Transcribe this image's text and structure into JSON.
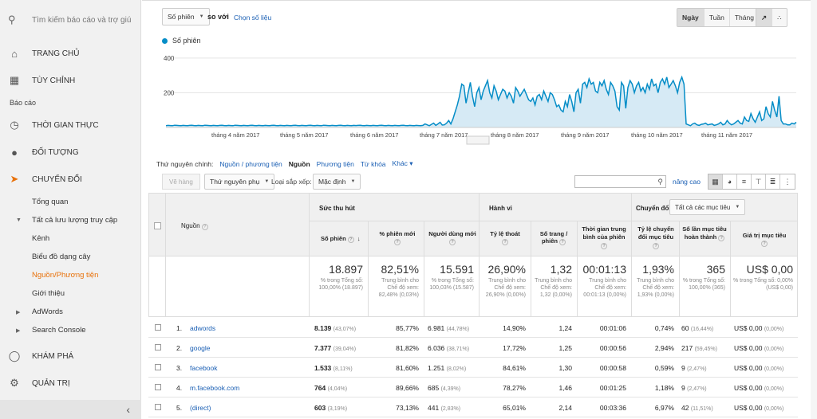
{
  "sidebar": {
    "search_placeholder": "Tìm kiếm báo cáo và trợ giú",
    "home": "TRANG CHỦ",
    "custom": "TÙY CHỈNH",
    "reports_label": "Báo cáo",
    "realtime": "THỜI GIAN THỰC",
    "audience": "ĐỐI TƯỢNG",
    "acquisition": "CHUYỂN ĐỔI",
    "sub_items": [
      "Tổng quan",
      "Tất cả lưu lượng truy cập",
      "Kênh",
      "Biểu đồ dạng cây",
      "Nguồn/Phương tiện",
      "Giới thiệu",
      "AdWords",
      "Search Console"
    ],
    "explore": "KHÁM PHÁ",
    "admin": "QUẢN TRỊ",
    "collapse_icon": "‹"
  },
  "controls": {
    "metric_select": "Số phiên",
    "compare_text": "so với",
    "choose_metric": "Chọn số liệu",
    "period_buttons": [
      "Ngày",
      "Tuần",
      "Tháng"
    ],
    "active_period": "Ngày"
  },
  "chart_data": {
    "type": "area",
    "series": [
      {
        "name": "Số phiên"
      }
    ],
    "ylim": [
      0,
      450
    ],
    "yticks": [
      200,
      400
    ],
    "xlabels": [
      "tháng 4 năm 2017",
      "tháng 5 năm 2017",
      "tháng 6 năm 2017",
      "tháng 7 năm 2017",
      "tháng 8 năm 2017",
      "tháng 9 năm 2017",
      "tháng 10 năm 2017",
      "tháng 11 năm 2017"
    ],
    "values": [
      10,
      12,
      11,
      10,
      13,
      12,
      11,
      10,
      12,
      11,
      10,
      12,
      13,
      11,
      10,
      12,
      11,
      10,
      13,
      12,
      11,
      10,
      12,
      11,
      10,
      12,
      13,
      11,
      10,
      12,
      11,
      10,
      13,
      12,
      11,
      10,
      12,
      11,
      10,
      12,
      13,
      11,
      10,
      12,
      11,
      10,
      12,
      11,
      10,
      12,
      13,
      11,
      10,
      12,
      11,
      10,
      12,
      11,
      10,
      12,
      13,
      11,
      10,
      12,
      11,
      10,
      12,
      13,
      11,
      10,
      12,
      11,
      10,
      13,
      12,
      11,
      10,
      12,
      11,
      10,
      12,
      13,
      11,
      10,
      12,
      11,
      10,
      12,
      11,
      12,
      13,
      11,
      10,
      12,
      11,
      10,
      12,
      11,
      10,
      12,
      13,
      11,
      10,
      12,
      11,
      10,
      12,
      11,
      10,
      12,
      13,
      11,
      10,
      12,
      11,
      10,
      12,
      11,
      10,
      12,
      20,
      15,
      10,
      18,
      25,
      12,
      20,
      30,
      14,
      15,
      25,
      40,
      20,
      50,
      90,
      130,
      180,
      250,
      240,
      140,
      200,
      260,
      180,
      120,
      200,
      230,
      160,
      210,
      240,
      270,
      200,
      170,
      240,
      210,
      160,
      190,
      220,
      210,
      170,
      200,
      180,
      140,
      230,
      210,
      180,
      200,
      220,
      190,
      160,
      150,
      170,
      130,
      180,
      190,
      160,
      210,
      180,
      150,
      200,
      190,
      160,
      120,
      130,
      100,
      90,
      150,
      120,
      190,
      150,
      90,
      200,
      220,
      140,
      250,
      260,
      230,
      280,
      250,
      260,
      210,
      200,
      260,
      240,
      270,
      220,
      190,
      260,
      240,
      210,
      120,
      100,
      260,
      240,
      110,
      230,
      270,
      250,
      200,
      240,
      260,
      210,
      230,
      200,
      250,
      220,
      280,
      240,
      250,
      200,
      260,
      280,
      250,
      290,
      230,
      250,
      270,
      240,
      200,
      260,
      290,
      250,
      20,
      15,
      10,
      20,
      25,
      15,
      12,
      18,
      20,
      25,
      15,
      18,
      20,
      12,
      15,
      20,
      30,
      15,
      20,
      40,
      25,
      15,
      20,
      30,
      40,
      25,
      20,
      60,
      40,
      35,
      80,
      50,
      30,
      60,
      90,
      40,
      50,
      120,
      80,
      60,
      150,
      100,
      60,
      180,
      40,
      20,
      20,
      15,
      15,
      25,
      20,
      30
    ]
  },
  "dimensions": {
    "label": "Thứ nguyên chính:",
    "options": [
      "Nguồn / phương tiện",
      "Nguồn",
      "Phương tiện",
      "Từ khóa",
      "Khác"
    ],
    "current": "Nguồn"
  },
  "toolbar": {
    "plot_rows": "Vẽ hàng",
    "secondary_dim": "Thứ nguyên phụ",
    "sort_type_label": "Loại sắp xếp:",
    "sort_value": "Mặc định",
    "advanced": "nâng cao"
  },
  "table": {
    "source_header": "Nguồn",
    "groups": [
      "Sức thu hút",
      "Hành vi",
      "Chuyển đổi"
    ],
    "goal_select": "Tất cả các mục tiêu",
    "columns": [
      "Số phiên",
      "% phiên mới",
      "Người dùng mới",
      "Tỷ lệ thoát",
      "Số trang / phiên",
      "Thời gian trung bình của phiên",
      "Tỷ lệ chuyển đổi mục tiêu",
      "Số lần mục tiêu hoàn thành",
      "Giá trị mục tiêu"
    ],
    "totals": [
      {
        "big": "18.897",
        "small": "% trong Tổng số: 100,00% (18.897)"
      },
      {
        "big": "82,51%",
        "small": "Trung bình cho Chế độ xem: 82,48% (0,03%)"
      },
      {
        "big": "15.591",
        "small": "% trong Tổng số: 100,03% (15.587)"
      },
      {
        "big": "26,90%",
        "small": "Trung bình cho Chế độ xem: 26,90% (0,00%)"
      },
      {
        "big": "1,32",
        "small": "Trung bình cho Chế độ xem: 1,32 (0,00%)"
      },
      {
        "big": "00:01:13",
        "small": "Trung bình cho Chế độ xem: 00:01:13 (0,00%)"
      },
      {
        "big": "1,93%",
        "small": "Trung bình cho Chế độ xem: 1,93% (0,00%)"
      },
      {
        "big": "365",
        "small": "% trong Tổng số: 100,00% (365)"
      },
      {
        "big": "US$ 0,00",
        "small": "% trong Tổng số: 0,00% (US$ 0,00)"
      }
    ],
    "rows": [
      {
        "idx": "1.",
        "source": "adwords",
        "sessions": "8.139",
        "sessions_pct": "(43,07%)",
        "new_pct": "85,77%",
        "new_users": "6.981",
        "new_users_pct": "(44,78%)",
        "bounce": "14,90%",
        "pages": "1,24",
        "duration": "00:01:06",
        "conv": "0,74%",
        "goals": "60",
        "goals_pct": "(16,44%)",
        "value": "US$ 0,00",
        "value_pct": "(0,00%)"
      },
      {
        "idx": "2.",
        "source": "google",
        "sessions": "7.377",
        "sessions_pct": "(39,04%)",
        "new_pct": "81,82%",
        "new_users": "6.036",
        "new_users_pct": "(38,71%)",
        "bounce": "17,72%",
        "pages": "1,25",
        "duration": "00:00:56",
        "conv": "2,94%",
        "goals": "217",
        "goals_pct": "(59,45%)",
        "value": "US$ 0,00",
        "value_pct": "(0,00%)"
      },
      {
        "idx": "3.",
        "source": "facebook",
        "sessions": "1.533",
        "sessions_pct": "(8,11%)",
        "new_pct": "81,60%",
        "new_users": "1.251",
        "new_users_pct": "(8,02%)",
        "bounce": "84,61%",
        "pages": "1,30",
        "duration": "00:00:58",
        "conv": "0,59%",
        "goals": "9",
        "goals_pct": "(2,47%)",
        "value": "US$ 0,00",
        "value_pct": "(0,00%)"
      },
      {
        "idx": "4.",
        "source": "m.facebook.com",
        "sessions": "764",
        "sessions_pct": "(4,04%)",
        "new_pct": "89,66%",
        "new_users": "685",
        "new_users_pct": "(4,39%)",
        "bounce": "78,27%",
        "pages": "1,46",
        "duration": "00:01:25",
        "conv": "1,18%",
        "goals": "9",
        "goals_pct": "(2,47%)",
        "value": "US$ 0,00",
        "value_pct": "(0,00%)"
      },
      {
        "idx": "5.",
        "source": "(direct)",
        "sessions": "603",
        "sessions_pct": "(3,19%)",
        "new_pct": "73,13%",
        "new_users": "441",
        "new_users_pct": "(2,83%)",
        "bounce": "65,01%",
        "pages": "2,14",
        "duration": "00:03:36",
        "conv": "6,97%",
        "goals": "42",
        "goals_pct": "(11,51%)",
        "value": "US$ 0,00",
        "value_pct": "(0,00%)"
      }
    ]
  },
  "colors": {
    "accent": "#e8710a",
    "link": "#1a5fb4",
    "series": "#058dc7",
    "fill": "#d6eaf5"
  }
}
